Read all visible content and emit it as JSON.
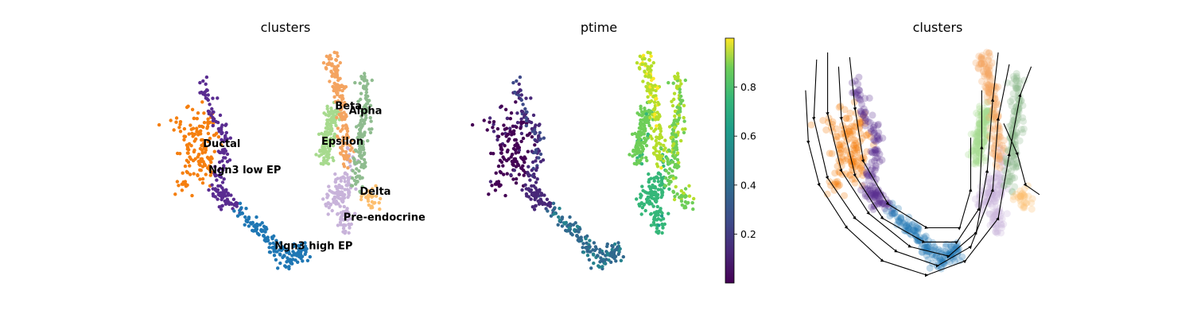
{
  "chart_data": [
    {
      "type": "scatter",
      "title": "clusters",
      "legend_placement": "on-data",
      "series": [
        {
          "name": "Ductal",
          "color": "#f57f0f",
          "label_xy": [
            0.2,
            0.58
          ],
          "points": [
            [
              0.1,
              0.68
            ],
            [
              0.2,
              0.7
            ],
            [
              0.2,
              0.62
            ],
            [
              0.16,
              0.55
            ],
            [
              0.22,
              0.5
            ],
            [
              0.12,
              0.45
            ]
          ]
        },
        {
          "name": "Ngn3 low EP",
          "color": "#5a2d91",
          "label_xy": [
            0.22,
            0.47
          ],
          "points": [
            [
              0.2,
              0.85
            ],
            [
              0.28,
              0.6
            ],
            [
              0.25,
              0.4
            ],
            [
              0.32,
              0.32
            ]
          ]
        },
        {
          "name": "Ngn3 high EP",
          "color": "#1f77b4",
          "label_xy": [
            0.46,
            0.15
          ],
          "points": [
            [
              0.33,
              0.3
            ],
            [
              0.42,
              0.22
            ],
            [
              0.5,
              0.1
            ],
            [
              0.58,
              0.15
            ]
          ]
        },
        {
          "name": "Pre-endocrine",
          "color": "#c8b3da",
          "label_xy": [
            0.71,
            0.27
          ],
          "points": [
            [
              0.66,
              0.32
            ],
            [
              0.7,
              0.45
            ],
            [
              0.72,
              0.22
            ],
            [
              0.74,
              0.58
            ]
          ]
        },
        {
          "name": "Epsilon",
          "color": "#a7da8e",
          "label_xy": [
            0.63,
            0.59
          ],
          "points": [
            [
              0.64,
              0.52
            ],
            [
              0.66,
              0.65
            ],
            [
              0.68,
              0.74
            ]
          ]
        },
        {
          "name": "Beta",
          "color": "#f4a460",
          "label_xy": [
            0.68,
            0.74
          ],
          "points": [
            [
              0.66,
              0.98
            ],
            [
              0.69,
              0.85
            ],
            [
              0.71,
              0.7
            ],
            [
              0.72,
              0.52
            ]
          ]
        },
        {
          "name": "Alpha",
          "color": "#8fbc8f",
          "label_xy": [
            0.73,
            0.72
          ],
          "points": [
            [
              0.78,
              0.9
            ],
            [
              0.79,
              0.72
            ],
            [
              0.77,
              0.58
            ],
            [
              0.76,
              0.42
            ]
          ]
        },
        {
          "name": "Delta",
          "color": "#fdbf6f",
          "label_xy": [
            0.77,
            0.38
          ],
          "points": [
            [
              0.79,
              0.37
            ],
            [
              0.81,
              0.37
            ],
            [
              0.82,
              0.36
            ]
          ]
        }
      ]
    },
    {
      "type": "scatter",
      "title": "ptime",
      "colorbar": {
        "min": 0.0,
        "max": 1.0,
        "ticks": [
          0.2,
          0.4,
          0.6,
          0.8
        ],
        "tick_labels": [
          "0.2",
          "0.4",
          "0.6",
          "0.8"
        ],
        "colormap": "viridis"
      }
    },
    {
      "type": "scatter",
      "title": "clusters",
      "overlay": "velocity streamlines"
    }
  ]
}
